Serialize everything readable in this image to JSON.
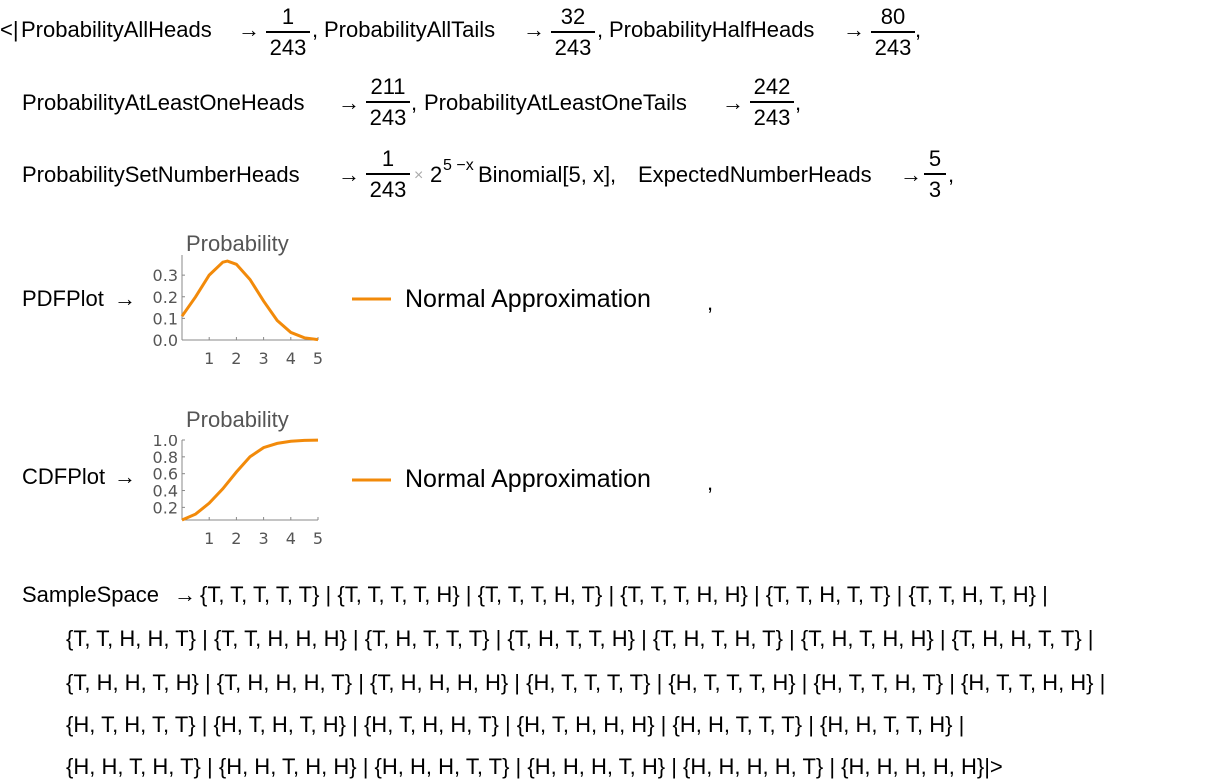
{
  "line1": {
    "open": "<|",
    "k_all_heads": "ProbabilityAllHeads",
    "all_heads_num": "1",
    "all_heads_den": "243",
    "k_all_tails": "ProbabilityAllTails",
    "all_tails_num": "32",
    "all_tails_den": "243",
    "k_half_heads": "ProbabilityHalfHeads",
    "half_heads_num": "80",
    "half_heads_den": "243"
  },
  "line2": {
    "k_least_heads": "ProbabilityAtLeastOneHeads",
    "least_heads_num": "211",
    "least_heads_den": "243",
    "k_least_tails": "ProbabilityAtLeastOneTails",
    "least_tails_num": "242",
    "least_tails_den": "243"
  },
  "line3": {
    "k_set_number": "ProbabilitySetNumberHeads",
    "set_num": "1",
    "set_den": "243",
    "times": "×",
    "base": "2",
    "exponent": "5 −x",
    "binomial": "Binomial[5, x],",
    "k_expected": "ExpectedNumberHeads",
    "expected_num": "5",
    "expected_den": "3"
  },
  "arrow": "→",
  "comma": ",",
  "pdf": {
    "key": "PDFPlot",
    "title": "Probability",
    "legend": "Normal Approximation",
    "y_ticks": [
      "0.3",
      "0.2",
      "0.1",
      "0.0"
    ],
    "x_ticks": [
      "1",
      "2",
      "3",
      "4",
      "5"
    ]
  },
  "cdf": {
    "key": "CDFPlot",
    "title": "Probability",
    "legend": "Normal Approximation",
    "y_ticks": [
      "1.0",
      "0.8",
      "0.6",
      "0.4",
      "0.2"
    ],
    "x_ticks": [
      "1",
      "2",
      "3",
      "4",
      "5"
    ]
  },
  "chart_data": [
    {
      "type": "line",
      "title": "Probability",
      "series": [
        {
          "name": "Normal Approximation",
          "x": [
            0,
            0.5,
            1,
            1.5,
            1.67,
            2,
            2.5,
            3,
            3.5,
            4,
            4.5,
            5
          ],
          "y": [
            0.11,
            0.2,
            0.3,
            0.36,
            0.365,
            0.35,
            0.28,
            0.18,
            0.09,
            0.035,
            0.01,
            0.002
          ]
        }
      ],
      "xlim": [
        0,
        5
      ],
      "ylim": [
        0,
        0.37
      ],
      "color": "#F28A0A"
    },
    {
      "type": "line",
      "title": "Probability",
      "series": [
        {
          "name": "Normal Approximation",
          "x": [
            0,
            0.5,
            1,
            1.5,
            2,
            2.5,
            3,
            3.5,
            4,
            4.5,
            5
          ],
          "y": [
            0.05,
            0.12,
            0.25,
            0.42,
            0.62,
            0.8,
            0.91,
            0.96,
            0.985,
            0.995,
            0.999
          ]
        }
      ],
      "xlim": [
        0,
        5
      ],
      "ylim": [
        0.05,
        1.0
      ],
      "color": "#F28A0A"
    }
  ],
  "sample": {
    "key": "SampleSpace",
    "lines": [
      "{T, T, T, T, T} | {T, T, T, T, H} | {T, T, T, H, T} | {T, T, T, H, H} | {T, T, H, T, T} | {T, T, H, T, H} |",
      "{T, T, H, H, T} | {T, T, H, H, H} | {T, H, T, T, T} | {T, H, T, T, H} | {T, H, T, H, T} | {T, H, T, H, H} | {T, H, H, T, T} |",
      "{T, H, H, T, H} | {T, H, H, H, T} | {T, H, H, H, H} | {H, T, T, T, T} | {H, T, T, T, H} | {H, T, T, H, T} | {H, T, T, H, H} |",
      "{H, T, H, T, T} | {H, T, H, T, H} | {H, T, H, H, T} | {H, T, H, H, H} | {H, H, T, T, T} | {H, H, T, T, H} |",
      "{H, H, T, H, T} | {H, H, T, H, H} | {H, H, H, T, T} | {H, H, H, T, H} | {H, H, H, H, T} | {H, H, H, H, H}|>"
    ]
  }
}
